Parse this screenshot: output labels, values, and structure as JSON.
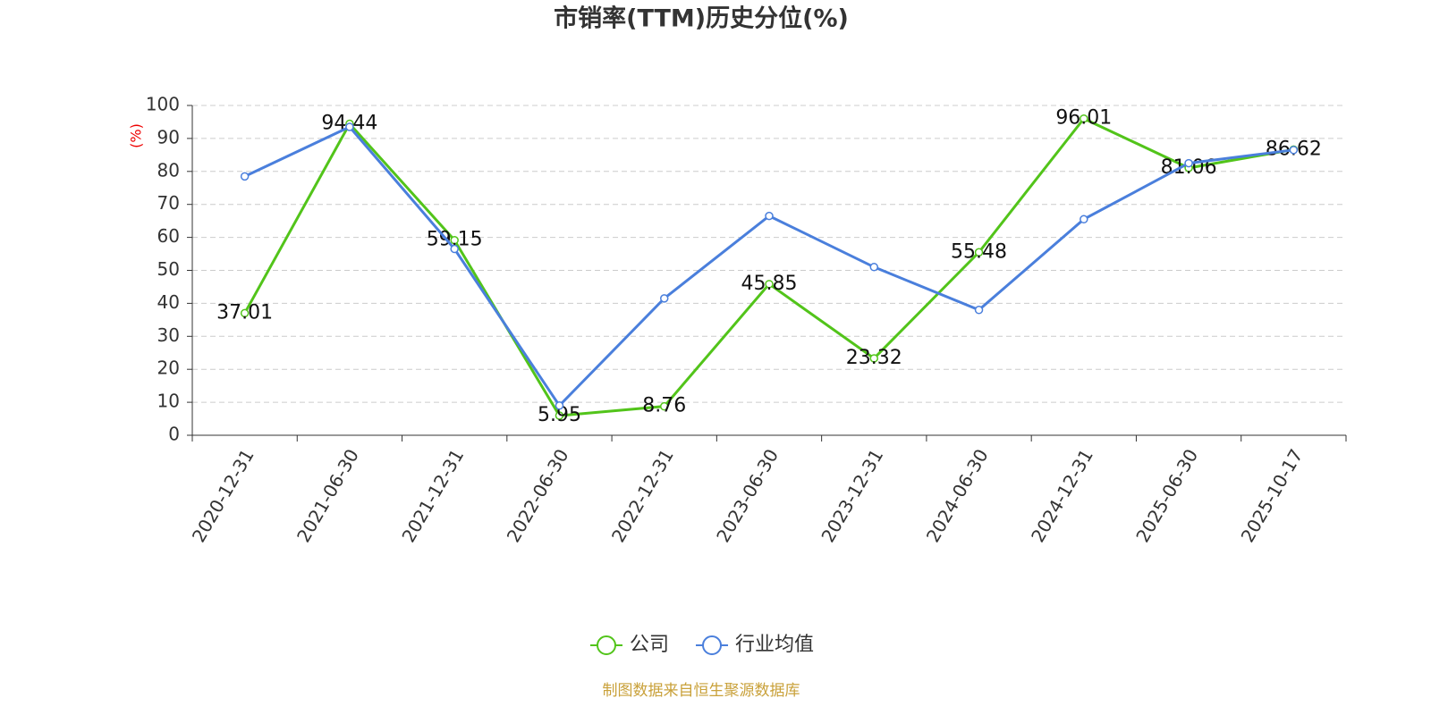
{
  "chart_data": {
    "type": "line",
    "title": "市销率(TTM)历史分位(%)",
    "y_label": "(%)",
    "categories": [
      "2020-12-31",
      "2021-06-30",
      "2021-12-31",
      "2022-06-30",
      "2022-12-31",
      "2023-06-30",
      "2023-12-31",
      "2024-06-30",
      "2024-12-31",
      "2025-06-30",
      "2025-10-17"
    ],
    "series": [
      {
        "name": "公司",
        "color": "#52c41a",
        "values": [
          37.01,
          94.44,
          59.15,
          5.95,
          8.76,
          45.85,
          23.32,
          55.48,
          96.01,
          81.06,
          86.62
        ],
        "show_labels": true
      },
      {
        "name": "行业均值",
        "color": "#4a7fdc",
        "values": [
          78.5,
          93.5,
          56.5,
          9,
          41.5,
          66.5,
          51,
          38,
          65.5,
          82.5,
          86.5
        ],
        "show_labels": false
      }
    ],
    "ylim": [
      0,
      100
    ],
    "yticks": [
      0,
      10,
      20,
      30,
      40,
      50,
      60,
      70,
      80,
      90,
      100
    ],
    "grid": true
  },
  "source": "制图数据来自恒生聚源数据库"
}
